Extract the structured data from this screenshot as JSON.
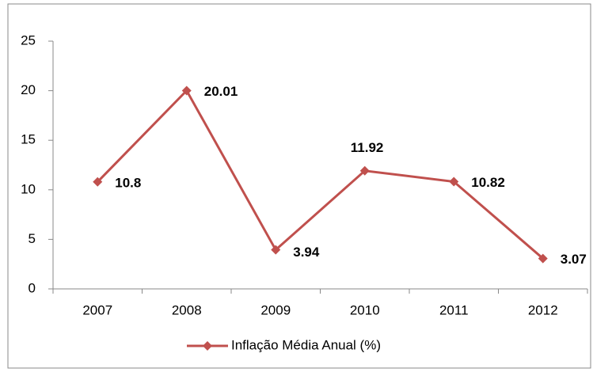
{
  "chart_data": {
    "type": "line",
    "categories": [
      "2007",
      "2008",
      "2009",
      "2010",
      "2011",
      "2012"
    ],
    "series": [
      {
        "name": "Inflação Média Anual (%)",
        "color": "#c0504d",
        "values": [
          10.8,
          20.01,
          3.94,
          11.92,
          10.82,
          3.07
        ]
      }
    ],
    "ylim": [
      0,
      25
    ],
    "yticks": [
      0,
      5,
      10,
      15,
      20,
      25
    ],
    "grid": false,
    "legend": "bottom",
    "data_labels": true
  }
}
